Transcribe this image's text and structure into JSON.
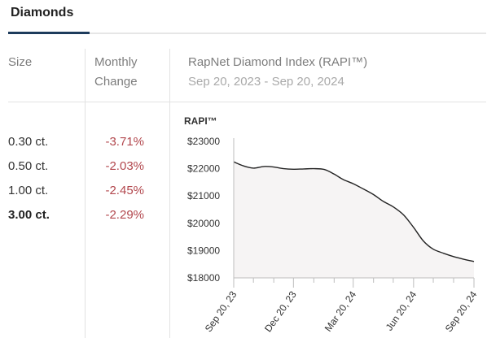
{
  "tabs": [
    {
      "label": "Diamonds",
      "active": true
    }
  ],
  "table": {
    "headers": {
      "size": "Size",
      "change_line1": "Monthly",
      "change_line2": "Change",
      "index_title": "RapNet Diamond Index (RAPI™)",
      "index_range": "Sep 20, 2023 - Sep 20, 2024"
    },
    "rows": [
      {
        "size": "0.30 ct.",
        "change": "-3.71%",
        "bold": false
      },
      {
        "size": "0.50 ct.",
        "change": "-2.03%",
        "bold": false
      },
      {
        "size": "1.00 ct.",
        "change": "-2.45%",
        "bold": false
      },
      {
        "size": "3.00 ct.",
        "change": "-2.29%",
        "bold": true
      }
    ]
  },
  "colors": {
    "negative_change": "#b2474d",
    "tab_underline": "#1d3b5c",
    "line": "#222222",
    "area_fill": "#f6f4f4"
  },
  "chart_data": {
    "type": "area",
    "ylabel": "RAPI™",
    "y_ticks": [
      "$23000",
      "$22000",
      "$21000",
      "$20000",
      "$19000",
      "$18000"
    ],
    "ylim": [
      18000,
      23000
    ],
    "x_tick_labels": [
      "Sep 20, 23",
      "Dec 20, 23",
      "Mar 20, 24",
      "Jun 20, 24",
      "Sep 20, 24"
    ],
    "x_range": [
      "2023-09-20",
      "2024-09-20"
    ],
    "x_tick_dates": [
      "2023-09-20",
      "2023-12-20",
      "2024-03-20",
      "2024-06-20",
      "2024-09-20"
    ],
    "grid": false,
    "series": [
      {
        "x": [
          "2023-09-20",
          "2023-10-05",
          "2023-10-20",
          "2023-11-05",
          "2023-11-20",
          "2023-12-05",
          "2023-12-20",
          "2024-01-05",
          "2024-01-20",
          "2024-02-05",
          "2024-02-20",
          "2024-03-05",
          "2024-03-20",
          "2024-04-05",
          "2024-04-20",
          "2024-05-05",
          "2024-05-20",
          "2024-06-05",
          "2024-06-20",
          "2024-07-05",
          "2024-07-20",
          "2024-08-05",
          "2024-08-20",
          "2024-09-05",
          "2024-09-20"
        ],
        "values": [
          22250,
          22100,
          22020,
          22080,
          22060,
          22000,
          21980,
          21990,
          22000,
          21970,
          21800,
          21600,
          21450,
          21250,
          21050,
          20800,
          20600,
          20300,
          19850,
          19350,
          19050,
          18900,
          18780,
          18680,
          18600
        ]
      }
    ]
  }
}
